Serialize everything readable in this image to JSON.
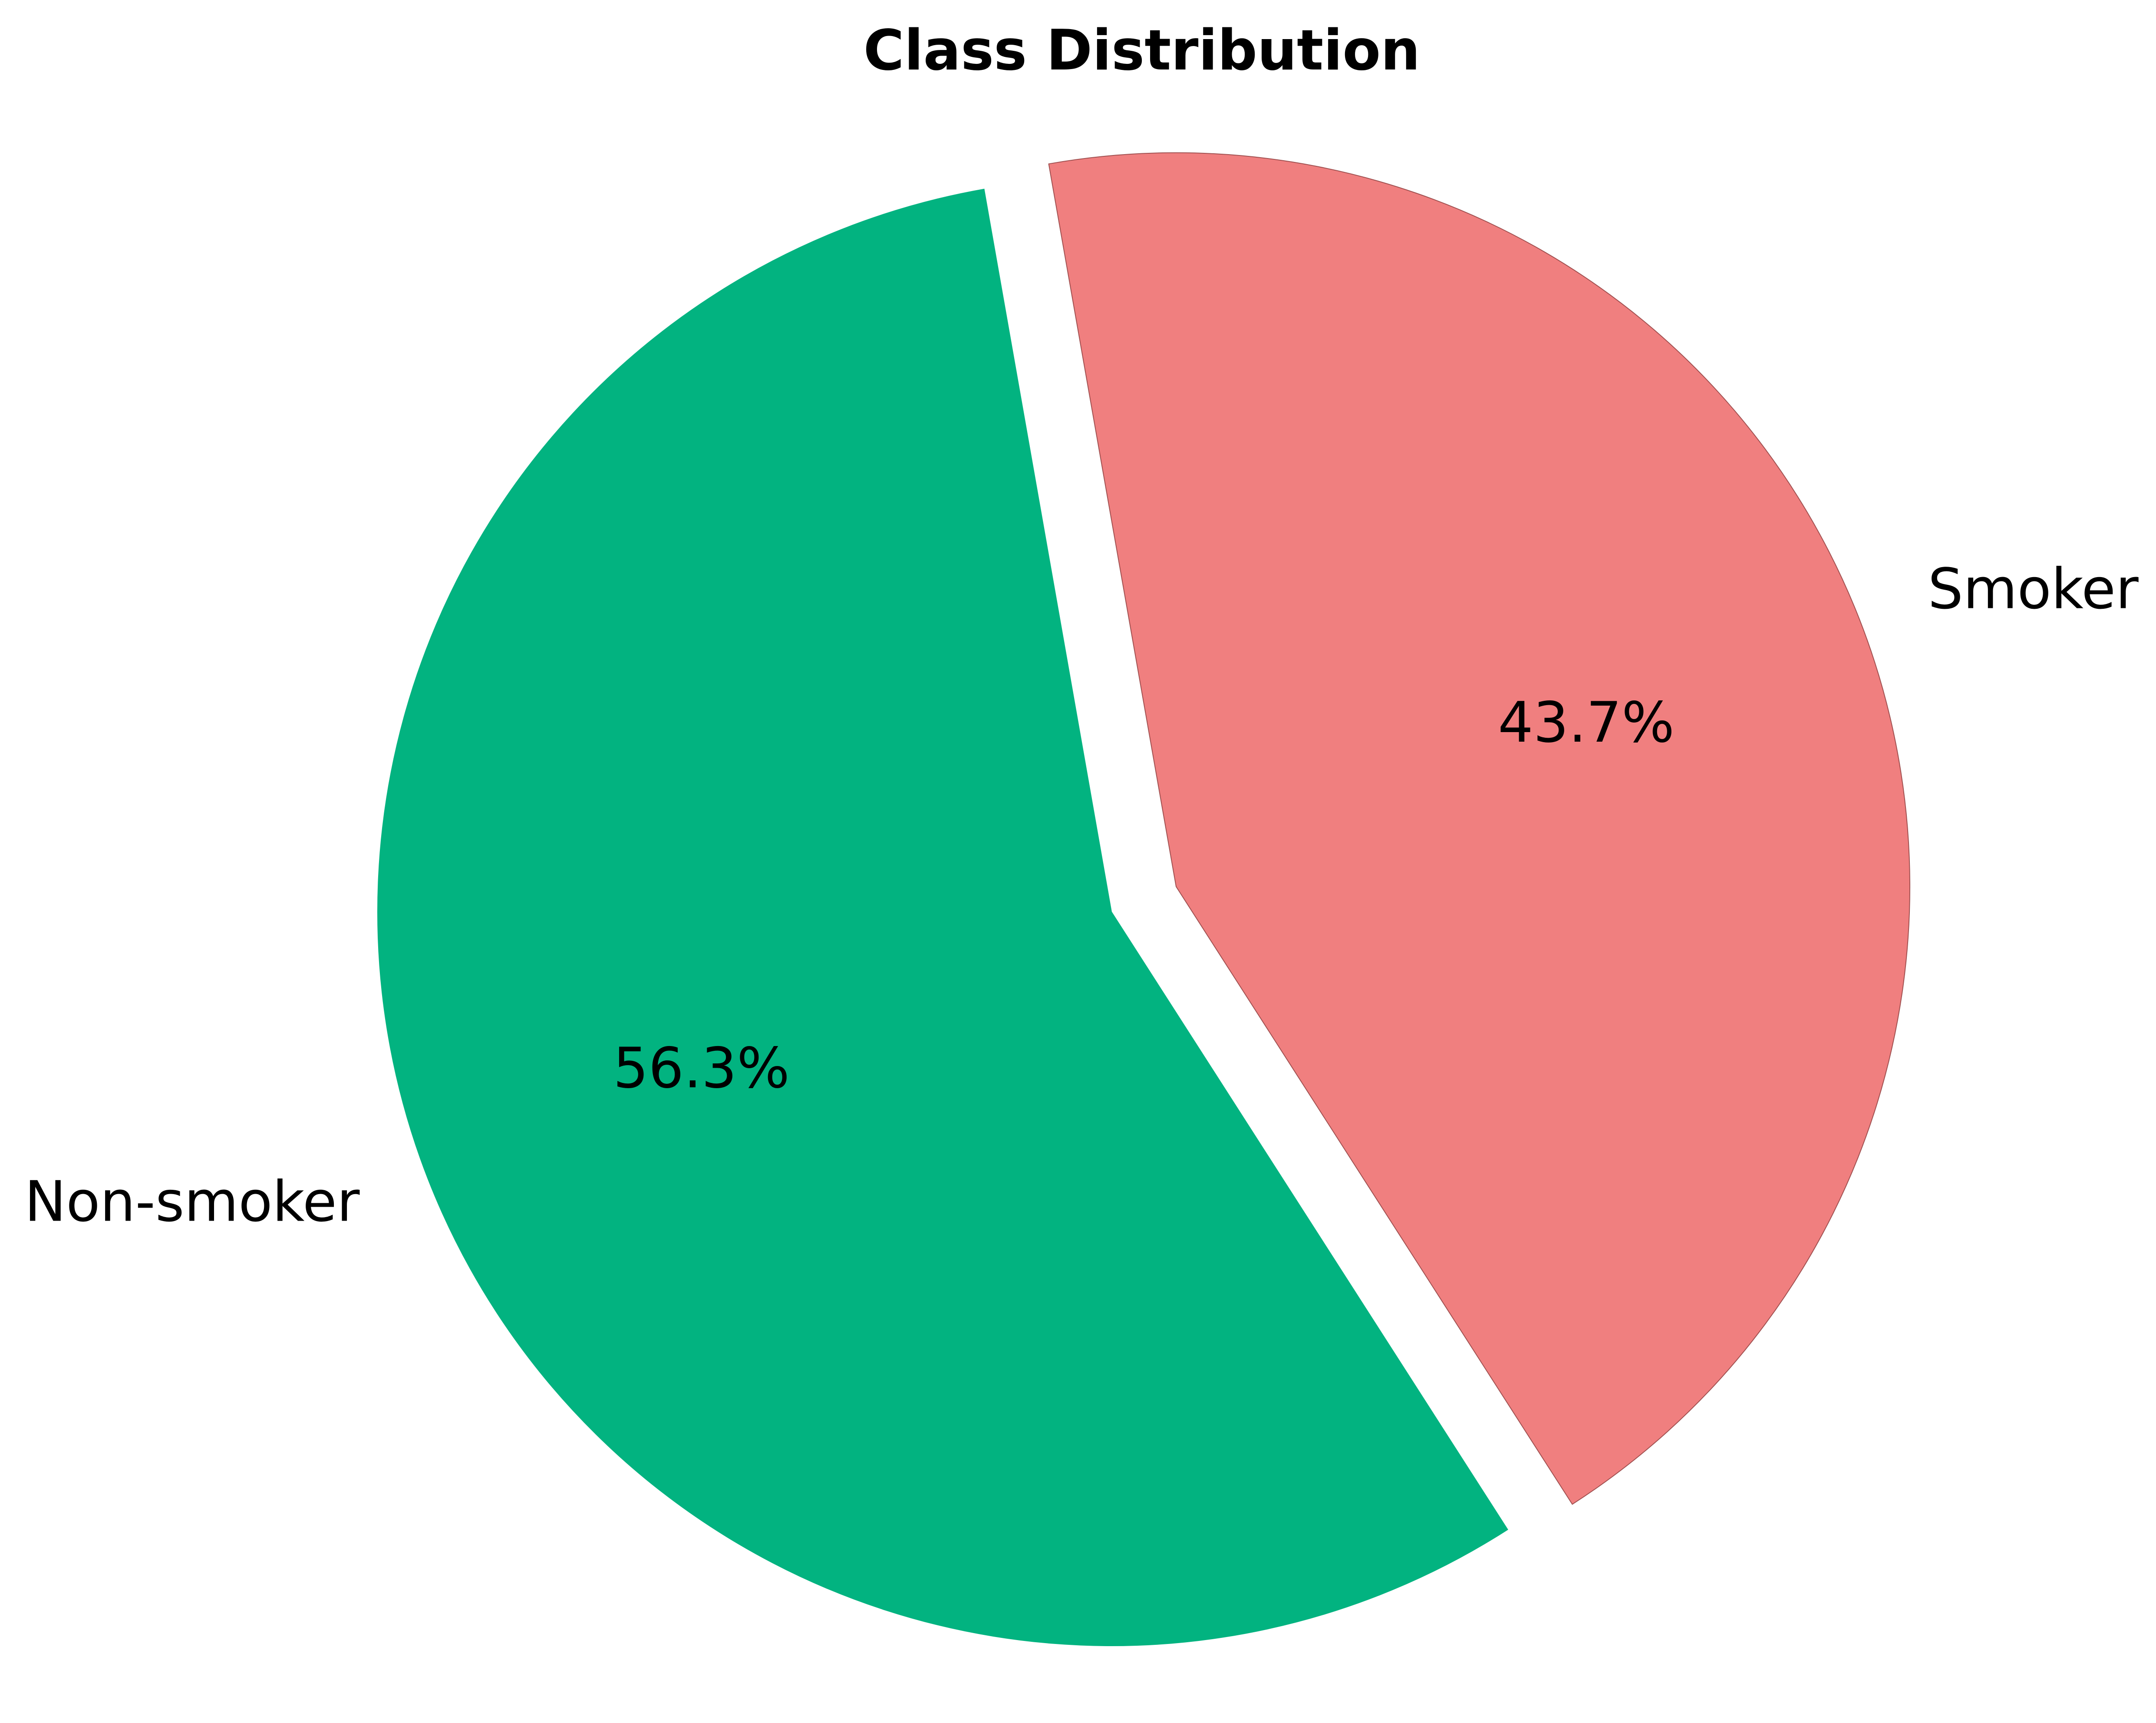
{
  "chart_data": {
    "type": "pie",
    "title": "Class Distribution",
    "categories": [
      "Non-smoker",
      "Smoker"
    ],
    "values": [
      56.3,
      43.7
    ],
    "labels": [
      "Non-smoker",
      "Smoker"
    ],
    "percent_labels": [
      "56.3%",
      "43.7%"
    ],
    "colors": [
      "#02b380",
      "#f07f7f"
    ],
    "edge_colors": [
      "#02b380",
      "#a05050"
    ],
    "exploded": [
      false,
      true
    ],
    "start_angle_deg": 100,
    "legend": "none"
  }
}
